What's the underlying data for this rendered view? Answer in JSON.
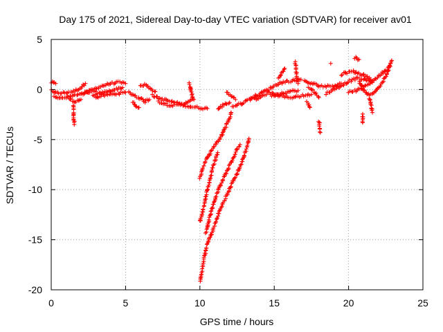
{
  "chart_data": {
    "type": "scatter",
    "title": "Day 175 of 2021, Sidereal Day-to-day VTEC variation (SDTVAR) for receiver av01",
    "xlabel": "GPS time / hours",
    "ylabel": "SDTVAR / TECUs",
    "xlim": [
      0,
      25
    ],
    "ylim": [
      -20,
      5
    ],
    "xticks": [
      "0",
      "5",
      "10",
      "15",
      "20",
      "25"
    ],
    "yticks": [
      "5",
      "0",
      "-5",
      "-10",
      "-15",
      "-20"
    ],
    "grid": true,
    "marker": "+",
    "color": "#ff0000",
    "series": [
      {
        "name": "SDTVAR",
        "segments": [
          [
            [
              0.0,
              0.7
            ],
            [
              0.3,
              0.6
            ]
          ],
          [
            [
              0.0,
              -0.1
            ],
            [
              0.5,
              -0.4
            ],
            [
              1.0,
              -0.3
            ],
            [
              1.5,
              -0.2
            ],
            [
              2.0,
              0.2
            ],
            [
              2.3,
              0.6
            ]
          ],
          [
            [
              0.2,
              -0.6
            ],
            [
              0.6,
              -0.9
            ],
            [
              1.0,
              -0.8
            ],
            [
              1.5,
              -0.6
            ],
            [
              2.0,
              -0.5
            ],
            [
              2.5,
              -0.3
            ],
            [
              3.0,
              -0.2
            ]
          ],
          [
            [
              1.5,
              -1.5
            ],
            [
              1.5,
              -2.5
            ],
            [
              1.55,
              -3.5
            ]
          ],
          [
            [
              1.2,
              -0.9
            ],
            [
              1.6,
              -1.2
            ],
            [
              2.0,
              -1.0
            ]
          ],
          [
            [
              2.2,
              -0.4
            ],
            [
              2.8,
              0.0
            ],
            [
              3.5,
              0.4
            ],
            [
              4.0,
              0.6
            ],
            [
              4.5,
              0.7
            ],
            [
              5.0,
              0.6
            ]
          ],
          [
            [
              2.8,
              -0.6
            ],
            [
              3.3,
              -0.4
            ],
            [
              3.8,
              -0.2
            ],
            [
              4.3,
              0.0
            ],
            [
              4.8,
              0.2
            ]
          ],
          [
            [
              3.0,
              -0.8
            ],
            [
              3.5,
              -0.6
            ],
            [
              4.0,
              -0.5
            ],
            [
              4.5,
              -0.4
            ],
            [
              5.0,
              -0.3
            ]
          ],
          [
            [
              5.2,
              -0.3
            ],
            [
              5.6,
              -0.6
            ],
            [
              6.0,
              -0.9
            ],
            [
              6.3,
              -1.2
            ],
            [
              6.6,
              -1.0
            ]
          ],
          [
            [
              5.5,
              -1.2
            ],
            [
              5.7,
              -1.6
            ],
            [
              5.9,
              -1.8
            ]
          ],
          [
            [
              6.0,
              0.3
            ],
            [
              6.3,
              0.5
            ],
            [
              6.6,
              0.2
            ],
            [
              7.0,
              -0.2
            ]
          ],
          [
            [
              6.8,
              -0.6
            ],
            [
              7.3,
              -0.9
            ],
            [
              7.8,
              -1.1
            ],
            [
              8.3,
              -1.3
            ],
            [
              8.8,
              -1.5
            ],
            [
              9.3,
              -1.7
            ],
            [
              9.8,
              -1.8
            ],
            [
              10.5,
              -1.9
            ]
          ],
          [
            [
              7.2,
              -1.2
            ],
            [
              7.8,
              -1.5
            ],
            [
              8.3,
              -1.6
            ],
            [
              8.8,
              -1.5
            ],
            [
              9.3,
              -1.1
            ],
            [
              9.6,
              -1.0
            ]
          ],
          [
            [
              9.3,
              0.6
            ],
            [
              9.4,
              -0.2
            ],
            [
              9.5,
              -0.8
            ]
          ],
          [
            [
              10.0,
              -8.8
            ],
            [
              10.2,
              -7.8
            ],
            [
              10.5,
              -6.8
            ],
            [
              10.8,
              -6.0
            ],
            [
              11.2,
              -5.2
            ],
            [
              11.4,
              -4.8
            ],
            [
              11.7,
              -3.8
            ],
            [
              12.0,
              -2.8
            ],
            [
              12.1,
              -2.3
            ]
          ],
          [
            [
              10.0,
              -13.2
            ],
            [
              10.2,
              -12.0
            ],
            [
              10.4,
              -10.7
            ],
            [
              10.6,
              -9.5
            ],
            [
              10.8,
              -8.2
            ],
            [
              11.0,
              -7.2
            ],
            [
              11.2,
              -6.3
            ]
          ],
          [
            [
              10.4,
              -14.3
            ],
            [
              10.7,
              -12.5
            ],
            [
              11.0,
              -11.0
            ],
            [
              11.3,
              -9.8
            ],
            [
              11.6,
              -8.8
            ],
            [
              11.9,
              -7.9
            ],
            [
              12.2,
              -7.0
            ],
            [
              12.5,
              -6.0
            ],
            [
              12.7,
              -5.5
            ]
          ],
          [
            [
              10.0,
              -19.2
            ],
            [
              10.2,
              -17.5
            ],
            [
              10.4,
              -16.0
            ],
            [
              10.6,
              -15.0
            ],
            [
              10.9,
              -14.0
            ],
            [
              11.2,
              -12.6
            ],
            [
              11.5,
              -11.5
            ],
            [
              11.8,
              -10.6
            ],
            [
              12.1,
              -9.6
            ],
            [
              12.4,
              -8.7
            ],
            [
              12.7,
              -7.7
            ],
            [
              13.0,
              -6.5
            ],
            [
              13.2,
              -5.5
            ],
            [
              13.3,
              -4.9
            ]
          ],
          [
            [
              11.2,
              -2.0
            ],
            [
              11.6,
              -1.5
            ],
            [
              12.0,
              -1.3
            ]
          ],
          [
            [
              12.2,
              -1.7
            ],
            [
              12.8,
              -1.4
            ],
            [
              13.3,
              -1.0
            ],
            [
              13.8,
              -0.7
            ]
          ],
          [
            [
              11.8,
              -0.3
            ],
            [
              12.1,
              -0.6
            ],
            [
              12.4,
              -1.0
            ]
          ],
          [
            [
              13.4,
              -0.8
            ],
            [
              13.8,
              -0.6
            ],
            [
              14.2,
              -0.3
            ],
            [
              14.8,
              0.2
            ],
            [
              15.3,
              0.6
            ],
            [
              15.8,
              0.8
            ],
            [
              16.3,
              0.9
            ],
            [
              16.8,
              1.0
            ]
          ],
          [
            [
              13.8,
              -1.0
            ],
            [
              14.2,
              -0.6
            ],
            [
              14.6,
              -0.3
            ],
            [
              15.0,
              -0.5
            ],
            [
              15.5,
              -0.7
            ],
            [
              16.0,
              -0.8
            ],
            [
              16.5,
              -0.7
            ],
            [
              17.0,
              -0.6
            ],
            [
              17.5,
              -0.5
            ]
          ],
          [
            [
              14.8,
              -0.6
            ],
            [
              15.4,
              -0.4
            ],
            [
              16.0,
              -0.2
            ],
            [
              16.6,
              -0.1
            ]
          ],
          [
            [
              15.3,
              1.1
            ],
            [
              15.5,
              1.6
            ],
            [
              15.7,
              2.1
            ]
          ],
          [
            [
              16.4,
              2.8
            ],
            [
              16.5,
              1.5
            ],
            [
              16.6,
              0.6
            ]
          ],
          [
            [
              17.2,
              -1.2
            ],
            [
              17.4,
              -1.8
            ]
          ],
          [
            [
              17.0,
              0.8
            ],
            [
              17.5,
              0.6
            ],
            [
              18.0,
              0.4
            ],
            [
              18.5,
              0.3
            ],
            [
              19.0,
              0.4
            ],
            [
              19.5,
              0.6
            ]
          ],
          [
            [
              17.3,
              0.2
            ],
            [
              17.7,
              -0.2
            ],
            [
              18.0,
              -0.8
            ]
          ],
          [
            [
              18.0,
              -3.1
            ],
            [
              18.05,
              -3.7
            ],
            [
              18.1,
              -4.3
            ]
          ],
          [
            [
              18.5,
              -0.4
            ],
            [
              19.0,
              0.0
            ],
            [
              19.5,
              0.4
            ],
            [
              20.0,
              0.8
            ],
            [
              20.5,
              1.1
            ],
            [
              21.0,
              1.0
            ],
            [
              21.5,
              0.8
            ]
          ],
          [
            [
              18.8,
              2.6
            ]
          ],
          [
            [
              19.5,
              1.5
            ],
            [
              19.9,
              1.7
            ],
            [
              20.3,
              1.8
            ],
            [
              20.7,
              1.6
            ],
            [
              21.1,
              1.4
            ],
            [
              21.5,
              1.0
            ]
          ],
          [
            [
              20.0,
              -0.2
            ],
            [
              20.5,
              -0.1
            ],
            [
              21.0,
              0.2
            ],
            [
              21.5,
              0.7
            ],
            [
              22.0,
              1.3
            ],
            [
              22.4,
              1.8
            ],
            [
              22.8,
              2.3
            ]
          ],
          [
            [
              20.4,
              3.2
            ],
            [
              20.7,
              3.0
            ]
          ],
          [
            [
              20.7,
              0.8
            ],
            [
              21.0,
              0.0
            ],
            [
              21.4,
              -0.6
            ],
            [
              21.8,
              -0.2
            ],
            [
              22.2,
              0.5
            ],
            [
              22.6,
              1.6
            ],
            [
              22.9,
              2.9
            ]
          ],
          [
            [
              20.95,
              -2.5
            ],
            [
              20.95,
              -3.3
            ]
          ],
          [
            [
              21.4,
              -0.9
            ],
            [
              21.5,
              -1.5
            ],
            [
              21.6,
              -2.3
            ]
          ]
        ]
      }
    ]
  }
}
